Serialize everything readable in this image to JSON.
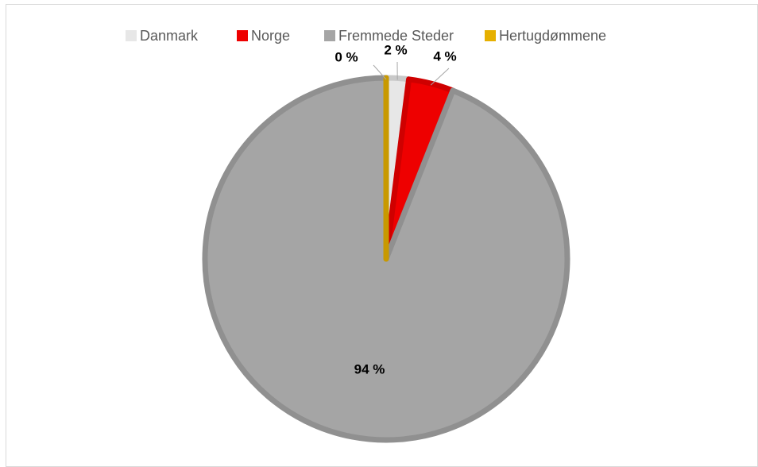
{
  "chart_data": {
    "type": "pie",
    "categories": [
      "Danmark",
      "Norge",
      "Fremmede Steder",
      "Hertugdømmene"
    ],
    "values": [
      2,
      4,
      94,
      0
    ],
    "value_labels": [
      "2 %",
      "4 %",
      "94 %",
      "0 %"
    ],
    "colors": [
      "#e7e7e7",
      "#ee0000",
      "#a5a5a5",
      "#e6b000"
    ],
    "legend": "top"
  }
}
